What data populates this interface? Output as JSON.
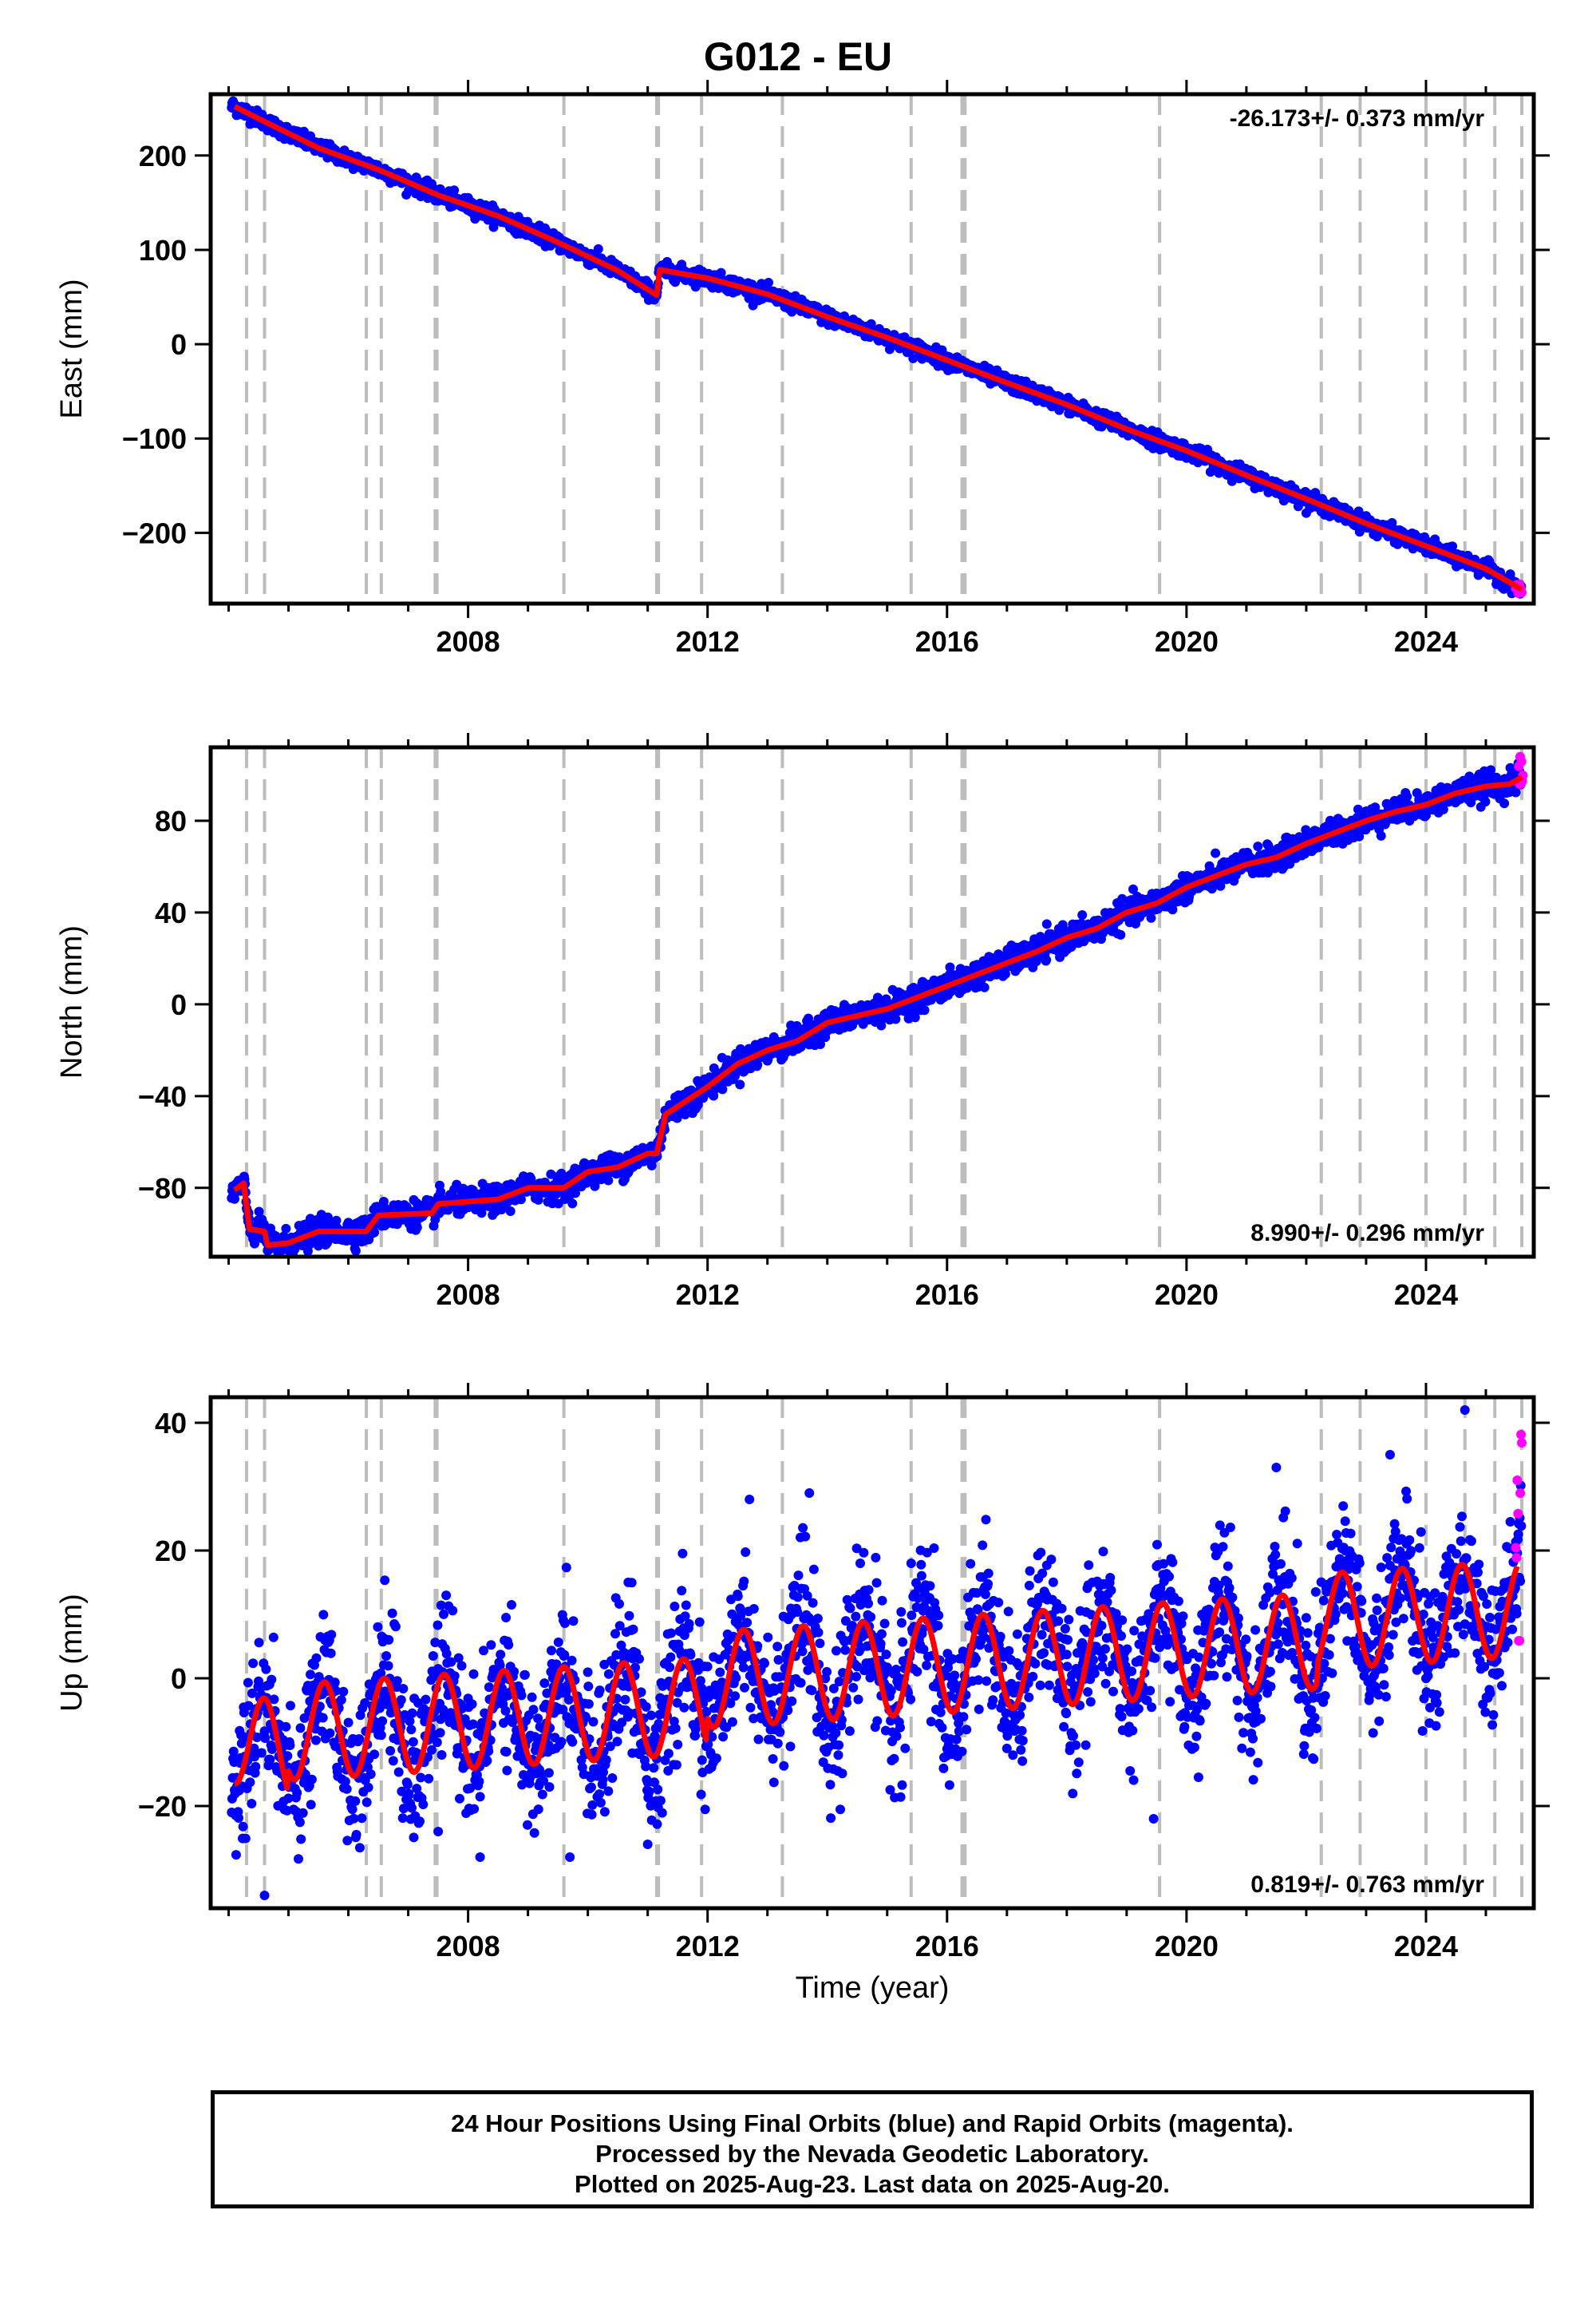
{
  "title": "G012 - EU",
  "footer": {
    "line1": "24 Hour Positions Using Final Orbits (blue) and Rapid Orbits (magenta).",
    "line2": "Processed by the Nevada Geodetic Laboratory.",
    "line3": "Plotted on 2025-Aug-23. Last data on 2025-Aug-20."
  },
  "colors": {
    "final_orbits": "#0000ff",
    "rapid_orbits": "#ff00ff",
    "fit": "#ff0000",
    "event_lines": "#bdbdbd"
  },
  "chart_data": [
    {
      "type": "scatter",
      "ylabel": "East (mm)",
      "xlabel": "",
      "rate": "-26.173+/- 0.373 mm/yr",
      "rate_position": "top-right",
      "xlim": [
        2003.7,
        2025.8
      ],
      "ylim": [
        -275,
        265
      ],
      "xticks": [
        2008,
        2012,
        2016,
        2020,
        2024
      ],
      "yticks": [
        -200,
        -100,
        0,
        100,
        200
      ],
      "event_lines": [
        2004.3,
        2004.6,
        2006.3,
        2006.55,
        2007.45,
        2007.48,
        2009.6,
        2011.15,
        2011.18,
        2011.9,
        2013.25,
        2015.4,
        2016.25,
        2016.3,
        2019.55,
        2022.25,
        2022.9,
        2024.0,
        2024.65,
        2025.15,
        2025.6
      ],
      "fit": [
        [
          2004.1,
          252
        ],
        [
          2004.6,
          236
        ],
        [
          2005.5,
          208
        ],
        [
          2006.5,
          185
        ],
        [
          2007.5,
          158
        ],
        [
          2008.5,
          136
        ],
        [
          2009.5,
          108
        ],
        [
          2010.5,
          78
        ],
        [
          2011.15,
          52
        ],
        [
          2011.2,
          79
        ],
        [
          2012.0,
          70
        ],
        [
          2013.0,
          53
        ],
        [
          2014.0,
          29
        ],
        [
          2015.0,
          7
        ],
        [
          2016.0,
          -17
        ],
        [
          2017.0,
          -41
        ],
        [
          2018.0,
          -64
        ],
        [
          2019.0,
          -90
        ],
        [
          2020.0,
          -113
        ],
        [
          2021.0,
          -139
        ],
        [
          2022.0,
          -164
        ],
        [
          2023.0,
          -190
        ],
        [
          2024.0,
          -214
        ],
        [
          2025.0,
          -238
        ],
        [
          2025.6,
          -260
        ]
      ],
      "noise": 4,
      "rapid": {
        "x_range": [
          2025.5,
          2025.6
        ],
        "y_range": [
          -264,
          -254
        ],
        "count": 6
      }
    },
    {
      "type": "scatter",
      "ylabel": "North (mm)",
      "xlabel": "",
      "rate": "8.990+/- 0.296 mm/yr",
      "rate_position": "bottom-right",
      "xlim": [
        2003.7,
        2025.8
      ],
      "ylim": [
        -110,
        112
      ],
      "xticks": [
        2008,
        2012,
        2016,
        2020,
        2024
      ],
      "yticks": [
        -80,
        -40,
        0,
        40,
        80
      ],
      "event_lines": [
        2004.3,
        2004.6,
        2006.3,
        2006.55,
        2007.45,
        2007.48,
        2009.6,
        2011.15,
        2011.18,
        2011.9,
        2013.25,
        2015.4,
        2016.25,
        2016.3,
        2019.55,
        2022.25,
        2022.9,
        2024.0,
        2024.65,
        2025.15,
        2025.6
      ],
      "fit": [
        [
          2004.1,
          -81
        ],
        [
          2004.25,
          -78
        ],
        [
          2004.35,
          -98
        ],
        [
          2004.6,
          -99
        ],
        [
          2004.65,
          -105
        ],
        [
          2005.0,
          -104
        ],
        [
          2005.5,
          -99
        ],
        [
          2006.3,
          -99
        ],
        [
          2006.5,
          -92
        ],
        [
          2007.4,
          -91
        ],
        [
          2007.5,
          -87
        ],
        [
          2008.5,
          -85
        ],
        [
          2009.0,
          -80
        ],
        [
          2009.6,
          -80
        ],
        [
          2010.0,
          -73
        ],
        [
          2010.5,
          -71
        ],
        [
          2011.0,
          -65
        ],
        [
          2011.15,
          -65
        ],
        [
          2011.3,
          -48
        ],
        [
          2012.0,
          -36
        ],
        [
          2012.5,
          -26
        ],
        [
          2013.0,
          -20
        ],
        [
          2013.5,
          -16
        ],
        [
          2014.0,
          -8
        ],
        [
          2014.5,
          -5
        ],
        [
          2015.0,
          -2
        ],
        [
          2015.5,
          3
        ],
        [
          2016.0,
          8
        ],
        [
          2016.5,
          13
        ],
        [
          2017.0,
          18
        ],
        [
          2017.5,
          23
        ],
        [
          2018.0,
          29
        ],
        [
          2018.5,
          33
        ],
        [
          2019.0,
          40
        ],
        [
          2019.5,
          44
        ],
        [
          2020.0,
          51
        ],
        [
          2020.5,
          56
        ],
        [
          2021.0,
          61
        ],
        [
          2021.5,
          64
        ],
        [
          2022.0,
          70
        ],
        [
          2022.5,
          75
        ],
        [
          2023.0,
          80
        ],
        [
          2023.5,
          84
        ],
        [
          2024.0,
          87
        ],
        [
          2024.5,
          92
        ],
        [
          2025.0,
          95
        ],
        [
          2025.4,
          96
        ],
        [
          2025.6,
          99
        ]
      ],
      "noise": 2.8,
      "rapid": {
        "x_range": [
          2025.55,
          2025.62
        ],
        "y_range": [
          96,
          108
        ],
        "count": 7
      }
    },
    {
      "type": "scatter",
      "ylabel": "Up (mm)",
      "xlabel": "Time (year)",
      "rate": "0.819+/- 0.763 mm/yr",
      "rate_position": "bottom-right",
      "xlim": [
        2003.7,
        2025.8
      ],
      "ylim": [
        -36,
        44
      ],
      "xticks": [
        2008,
        2012,
        2016,
        2020,
        2024
      ],
      "yticks": [
        -20,
        0,
        20,
        40
      ],
      "event_lines": [
        2004.3,
        2004.6,
        2006.3,
        2006.55,
        2007.45,
        2007.48,
        2009.6,
        2011.15,
        2011.18,
        2011.9,
        2013.25,
        2015.4,
        2016.25,
        2016.3,
        2019.55,
        2022.25,
        2022.9,
        2024.0,
        2024.65,
        2025.15,
        2025.6
      ],
      "seasonal_model": {
        "trend_start": -9,
        "trend_slope": 0.6,
        "amplitude": 7.5,
        "peak_phase": 0.6,
        "start_offset": -10
      },
      "noise": 5.5,
      "outliers": [
        [
          2024.65,
          42
        ],
        [
          2021.5,
          33
        ],
        [
          2013.7,
          29
        ],
        [
          2012.7,
          28
        ],
        [
          2023.4,
          35
        ],
        [
          2008.2,
          -28
        ],
        [
          2009.7,
          -28
        ],
        [
          2011.0,
          -26
        ],
        [
          2004.6,
          -34
        ],
        [
          2007.5,
          -24
        ],
        [
          2019.45,
          -22
        ]
      ],
      "rapid": {
        "x_range": [
          2025.5,
          2025.6
        ],
        "y_range": [
          5,
          40
        ],
        "count": 9
      }
    }
  ]
}
